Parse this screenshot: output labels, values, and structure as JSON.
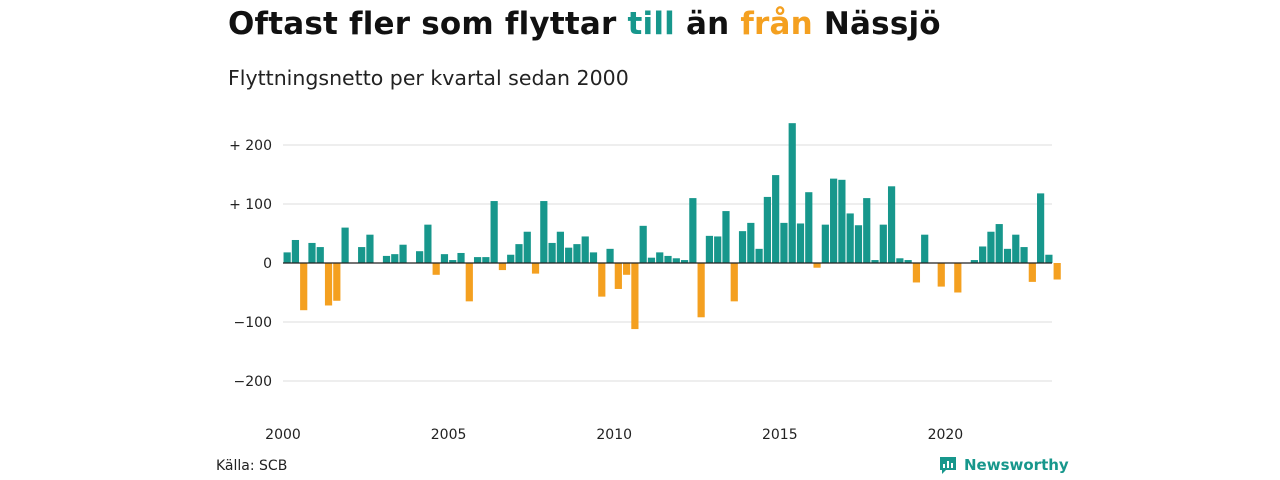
{
  "title": {
    "part1": "Oftast fler som flyttar ",
    "part2": "till",
    "part3": " än ",
    "part4": "från",
    "part5": " Nässjö"
  },
  "subtitle": "Flyttningsnetto per kvartal sedan 2000",
  "source": "Källa: SCB",
  "brand": "Newsworthy",
  "colors": {
    "positive": "#17978c",
    "negative": "#f4a020",
    "grid": "#dddddd",
    "baseline": "#222222"
  },
  "chart_data": {
    "type": "bar",
    "xlabel": "",
    "ylabel": "",
    "ylim": [
      -230,
      250
    ],
    "y_ticks": [
      {
        "value": 200,
        "label": "+ 200"
      },
      {
        "value": 100,
        "label": "+ 100"
      },
      {
        "value": 0,
        "label": "0"
      },
      {
        "value": -100,
        "label": "−100"
      },
      {
        "value": -200,
        "label": "−200"
      }
    ],
    "x_ticks": [
      {
        "value": 2000,
        "label": "2000"
      },
      {
        "value": 2005,
        "label": "2005"
      },
      {
        "value": 2010,
        "label": "2010"
      },
      {
        "value": 2015,
        "label": "2015"
      },
      {
        "value": 2020,
        "label": "2020"
      }
    ],
    "grid": true,
    "start_year": 2000,
    "values": [
      18,
      39,
      -80,
      34,
      27,
      -72,
      -64,
      60,
      0,
      27,
      48,
      0,
      12,
      15,
      31,
      0,
      20,
      65,
      -20,
      15,
      5,
      17,
      -65,
      10,
      10,
      105,
      -12,
      14,
      32,
      53,
      -18,
      105,
      34,
      53,
      26,
      32,
      45,
      18,
      -57,
      24,
      -44,
      -20,
      -112,
      63,
      9,
      18,
      12,
      8,
      5,
      110,
      -92,
      46,
      45,
      88,
      -65,
      54,
      68,
      24,
      112,
      149,
      68,
      237,
      67,
      120,
      -8,
      65,
      143,
      141,
      84,
      64,
      110,
      5,
      65,
      130,
      8,
      5,
      -33,
      48,
      0,
      -40,
      0,
      -50,
      0,
      5,
      28,
      53,
      66,
      24,
      48,
      27,
      -32,
      118,
      14,
      -28
    ]
  }
}
